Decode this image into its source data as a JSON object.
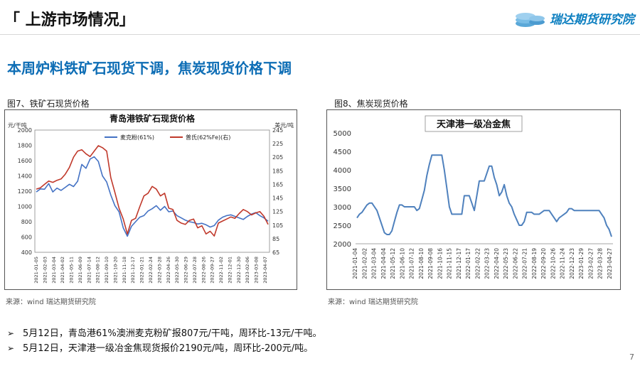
{
  "header": {
    "title": "「 上游市场情况」",
    "logo_text": "瑞达期货研究院"
  },
  "headline": "本周炉料铁矿石现货下调，焦炭现货价格下调",
  "figures": {
    "fig7": {
      "caption": "图7、铁矿石现货价格",
      "source": "来源：wind    瑞达期货研究院"
    },
    "fig8": {
      "caption": "图8、焦炭现货价格",
      "source": "来源：wind    瑞达期货研究院"
    }
  },
  "bullets": [
    "5月12日，青岛港61%澳洲麦克粉矿报807元/干吨，周环比-13元/干吨。",
    "5月12日，天津港一级冶金焦现货报价2190元/吨，周环比-200元/吨。"
  ],
  "page_number": "7",
  "colors": {
    "accent": "#0d6db5",
    "series_blue": "#4472c4",
    "series_red": "#c0392b",
    "coke_line": "#4f81bd"
  },
  "chart_data": [
    {
      "type": "line",
      "title": "青岛港铁矿石现货价格",
      "y_left_unit": "元/干吨",
      "y_right_unit": "美元/吨",
      "ylim_left": [
        400,
        2000
      ],
      "yticks_left": [
        400,
        600,
        800,
        1000,
        1200,
        1400,
        1600,
        1800,
        2000
      ],
      "ylim_right": [
        65,
        245
      ],
      "yticks_right": [
        65,
        85,
        105,
        125,
        145,
        165,
        185,
        205,
        225,
        245
      ],
      "legend_position": "top",
      "grid": false,
      "x_labels": [
        "2021-01-05",
        "2021-02-03",
        "2021-03-04",
        "2021-04-02",
        "2021-05-11",
        "2021-06-09",
        "2021-07-14",
        "2021-08-12",
        "2021-09-10",
        "2021-10-20",
        "2021-11-18",
        "2021-12-17",
        "2022-01-21",
        "2022-02-24",
        "2022-03-28",
        "2022-04-26",
        "2022-05-30",
        "2022-06-29",
        "2022-07-28",
        "2022-08-26",
        "2022-09-27",
        "2022-11-02",
        "2022-12-01",
        "2022-12-30",
        "2023-02-06",
        "2023-03-08",
        "2023-04-07"
      ],
      "series": [
        {
          "name": "麦克粉(61%)",
          "axis": "left",
          "color": "#4472c4",
          "values": [
            1190,
            1230,
            1225,
            1300,
            1190,
            1240,
            1210,
            1250,
            1290,
            1260,
            1330,
            1550,
            1500,
            1620,
            1650,
            1590,
            1400,
            1320,
            1150,
            1010,
            930,
            720,
            610,
            740,
            800,
            860,
            880,
            940,
            970,
            1010,
            950,
            1000,
            930,
            940,
            880,
            850,
            820,
            800,
            790,
            770,
            780,
            760,
            730,
            750,
            820,
            860,
            880,
            890,
            870,
            850,
            830,
            870,
            900,
            920,
            880,
            850,
            807
          ]
        },
        {
          "name": "普氏(62%Fe)(右)",
          "axis": "right",
          "color": "#c0392b",
          "values": [
            158,
            160,
            165,
            170,
            168,
            171,
            173,
            180,
            190,
            205,
            214,
            216,
            210,
            206,
            214,
            222,
            219,
            214,
            175,
            153,
            130,
            114,
            92,
            112,
            115,
            132,
            148,
            152,
            162,
            158,
            148,
            152,
            130,
            128,
            112,
            108,
            106,
            112,
            114,
            101,
            104,
            92,
            96,
            89,
            108,
            111,
            114,
            117,
            115,
            122,
            128,
            125,
            120,
            123,
            125,
            118,
            106
          ]
        }
      ]
    },
    {
      "type": "line",
      "title": "天津港一级冶金焦",
      "ylim": [
        2000,
        5000
      ],
      "yticks": [
        2000,
        2500,
        3000,
        3500,
        4000,
        4500,
        5000
      ],
      "grid": false,
      "x_labels": [
        "2021-01-04",
        "2021-02-02",
        "2021-03-04",
        "2021-04-04",
        "2021-05-12",
        "2021-06-10",
        "2021-07-12",
        "2021-08-10",
        "2021-09-08",
        "2021-10-16",
        "2021-11-15",
        "2021-12-17",
        "2022-01-17",
        "2022-02-22",
        "2022-03-23",
        "2022-04-20",
        "2022-05-23",
        "2022-06-22",
        "2022-07-21",
        "2022-08-19",
        "2022-09-20",
        "2022-10-26",
        "2022-11-24",
        "2022-12-23",
        "2023-01-29",
        "2023-02-27",
        "2023-03-28",
        "2023-04-27"
      ],
      "series": [
        {
          "name": "",
          "color": "#4f81bd",
          "values": [
            2700,
            2800,
            2850,
            2950,
            3050,
            3100,
            3100,
            3000,
            2900,
            2700,
            2500,
            2300,
            2250,
            2250,
            2350,
            2600,
            2850,
            3050,
            3050,
            3000,
            3000,
            3000,
            3000,
            3000,
            2900,
            2950,
            3200,
            3450,
            3850,
            4150,
            4400,
            4400,
            4400,
            4400,
            4400,
            4000,
            3500,
            3000,
            2800,
            2800,
            2800,
            2800,
            2800,
            3300,
            3300,
            3300,
            3100,
            2900,
            3300,
            3700,
            3700,
            3700,
            3900,
            4100,
            4100,
            3800,
            3600,
            3300,
            3400,
            3600,
            3300,
            3100,
            3000,
            2800,
            2650,
            2500,
            2500,
            2600,
            2850,
            2850,
            2850,
            2800,
            2800,
            2800,
            2850,
            2900,
            2900,
            2900,
            2800,
            2700,
            2600,
            2700,
            2750,
            2800,
            2850,
            2950,
            2950,
            2900,
            2900,
            2900,
            2900,
            2900,
            2900,
            2900,
            2900,
            2900,
            2900,
            2900,
            2800,
            2700,
            2500,
            2390,
            2190
          ]
        }
      ]
    }
  ]
}
